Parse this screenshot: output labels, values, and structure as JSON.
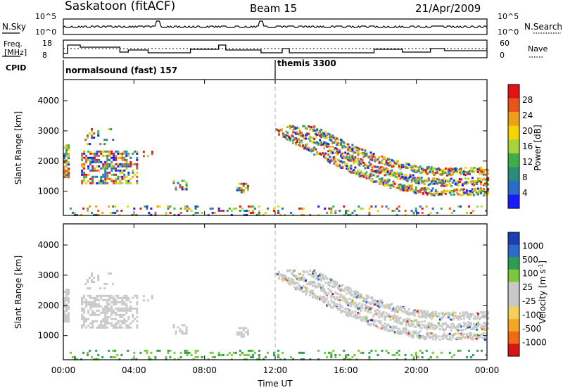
{
  "header": {
    "station": "Saskatoon (fitACF)",
    "beam": "Beam 15",
    "date": "21/Apr/2009"
  },
  "noise_panel": {
    "left_label": "N.Sky",
    "right_label": "N.Search",
    "ticks": [
      "10^5",
      "10^0"
    ]
  },
  "freq_panel": {
    "left_label_1": "Freq.",
    "left_label_2": "[MHz]",
    "left_ticks": [
      "18",
      "8"
    ],
    "right_label": "Nave",
    "right_ticks": [
      "60",
      "0"
    ]
  },
  "cpid_panel": {
    "label": "CPID",
    "modes": [
      "normalsound (fast) 157",
      "themis 3300"
    ]
  },
  "colors": {
    "power_scale": [
      "#1a1aff",
      "#2a6cc8",
      "#2b8c7a",
      "#3fae49",
      "#a7d33b",
      "#f2d400",
      "#f0a018",
      "#e8551a",
      "#e21313"
    ],
    "velocity_scale": [
      "#d61515",
      "#f06a14",
      "#f5a623",
      "#f3d05a",
      "#c8c8c8",
      "#c8c8c8",
      "#79c93b",
      "#2f9c55",
      "#2a6cc8",
      "#1a3fb3"
    ]
  },
  "chart_data": [
    {
      "type": "heatmap",
      "title": "Power",
      "ylabel": "Slant Range [km]",
      "xlabel": "",
      "x_ticks": [
        "00:00",
        "04:00",
        "08:00",
        "12:00",
        "16:00",
        "20:00",
        "00:00"
      ],
      "y_ticks": [
        "1000",
        "2000",
        "3000",
        "4000"
      ],
      "ylim": [
        200,
        4700
      ],
      "colorbar_label": "Power [dB]",
      "colorbar_ticks": [
        "4",
        "8",
        "12",
        "16",
        "20",
        "24",
        "28"
      ]
    },
    {
      "type": "heatmap",
      "title": "Velocity",
      "ylabel": "Slant Range [km]",
      "xlabel": "Time UT",
      "x_ticks": [
        "00:00",
        "04:00",
        "08:00",
        "12:00",
        "16:00",
        "20:00",
        "00:00"
      ],
      "y_ticks": [
        "1000",
        "2000",
        "3000",
        "4000"
      ],
      "ylim": [
        200,
        4700
      ],
      "colorbar_label": "Velocity [m s^-1]",
      "colorbar_ticks": [
        "1000",
        "500",
        "100",
        "25",
        "-25",
        "-100",
        "-500",
        "-1000"
      ]
    }
  ]
}
